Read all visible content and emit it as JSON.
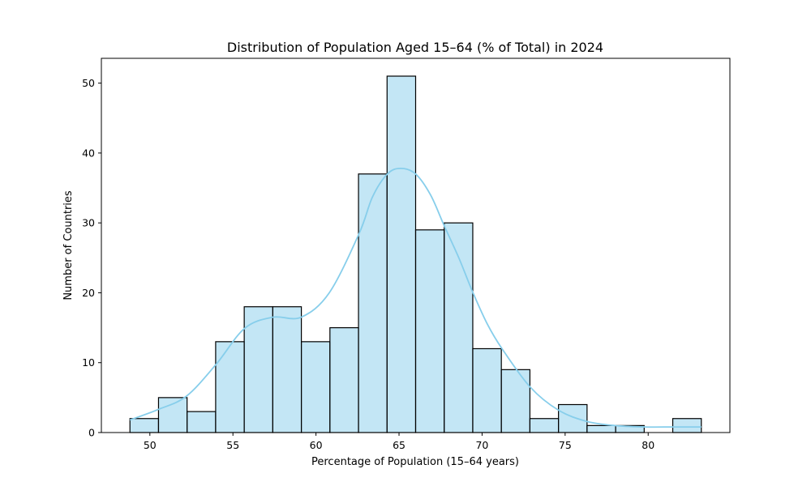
{
  "chart_data": {
    "type": "bar",
    "title": "Distribution of Population Aged 15–64 (% of Total) in 2024",
    "xlabel": "Percentage of Population (15–64 years)",
    "ylabel": "Number of Countries",
    "bin_edges": [
      48.8,
      50.52,
      52.24,
      53.96,
      55.68,
      57.4,
      59.12,
      60.84,
      62.56,
      64.28,
      66.0,
      67.72,
      69.44,
      71.16,
      72.88,
      74.6,
      76.32,
      78.04,
      79.76,
      81.48,
      83.2
    ],
    "counts": [
      2,
      5,
      3,
      13,
      18,
      18,
      13,
      15,
      37,
      51,
      29,
      30,
      12,
      9,
      2,
      4,
      1,
      1,
      0,
      2
    ],
    "kde": {
      "x": [
        48.8,
        50.5,
        52.2,
        54.0,
        55.7,
        57.4,
        59.1,
        60.8,
        62.6,
        63.4,
        64.3,
        65.1,
        66.0,
        66.9,
        67.7,
        68.6,
        69.4,
        70.3,
        71.2,
        72.9,
        74.6,
        76.3,
        78.0,
        79.8,
        81.5,
        83.2
      ],
      "y": [
        1.8,
        3.3,
        5.2,
        9.8,
        14.9,
        16.5,
        16.5,
        20.0,
        28.5,
        33.7,
        37.0,
        37.8,
        37.0,
        34.0,
        29.7,
        25.0,
        20.3,
        15.6,
        12.0,
        6.5,
        3.2,
        1.6,
        1.0,
        0.8,
        0.8,
        0.8
      ]
    },
    "xlim": [
      47.08,
      84.92
    ],
    "ylim": [
      0,
      53.55
    ],
    "xticks": [
      50,
      55,
      60,
      65,
      70,
      75,
      80
    ],
    "yticks": [
      0,
      10,
      20,
      30,
      40,
      50
    ],
    "bar_color": "#87ceeb",
    "bar_fill_opacity": 0.5,
    "edge_color": "#000000",
    "kde_color": "#87ceeb",
    "grid": false,
    "legend": "none"
  }
}
